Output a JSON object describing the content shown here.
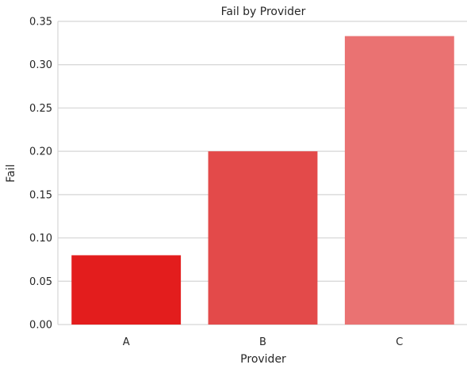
{
  "chart_data": {
    "type": "bar",
    "title": "Fail by Provider",
    "xlabel": "Provider",
    "ylabel": "Fail",
    "categories": [
      "A",
      "B",
      "C"
    ],
    "values": [
      0.08,
      0.2,
      0.333
    ],
    "ylim": [
      0,
      0.35
    ],
    "yticks": [
      "0.00",
      "0.05",
      "0.10",
      "0.15",
      "0.20",
      "0.25",
      "0.30",
      "0.35"
    ],
    "grid": "horizontal",
    "colors": [
      "#e31d1d",
      "#e34a4a",
      "#ea7272"
    ],
    "gridline_color": "#d5d5d5",
    "background_color": "#ffffff"
  }
}
